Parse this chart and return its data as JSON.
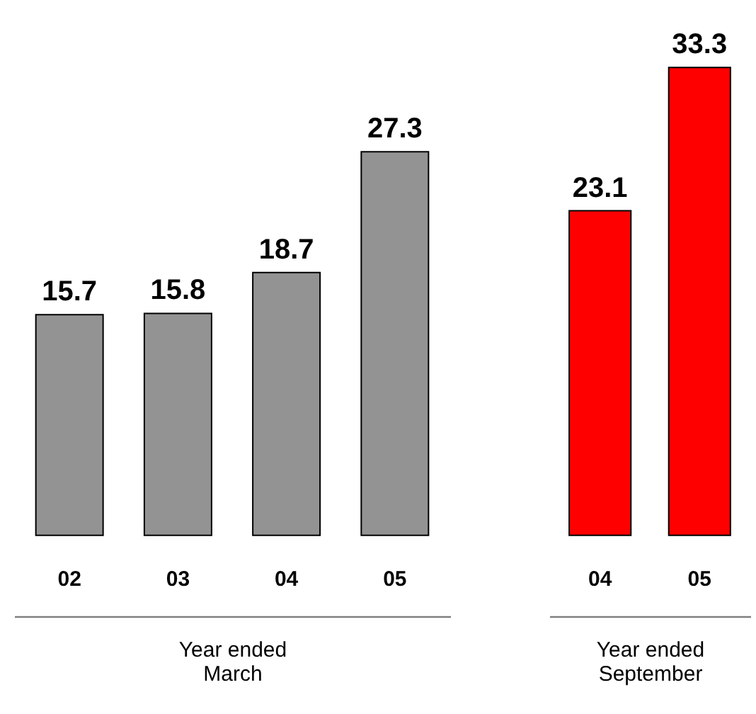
{
  "chart_data": [
    {
      "type": "bar",
      "categories": [
        "02",
        "03",
        "04",
        "05"
      ],
      "values": [
        15.7,
        15.8,
        18.7,
        27.3
      ],
      "color": "#939393",
      "xlabel": "Year ended\nMarch",
      "data_labels": true,
      "tick_labels": "x"
    },
    {
      "type": "bar",
      "categories": [
        "04",
        "05"
      ],
      "values": [
        23.1,
        33.3
      ],
      "color": "#ff0000",
      "xlabel": "Year ended\nSeptember",
      "data_labels": true,
      "tick_labels": "x"
    }
  ]
}
